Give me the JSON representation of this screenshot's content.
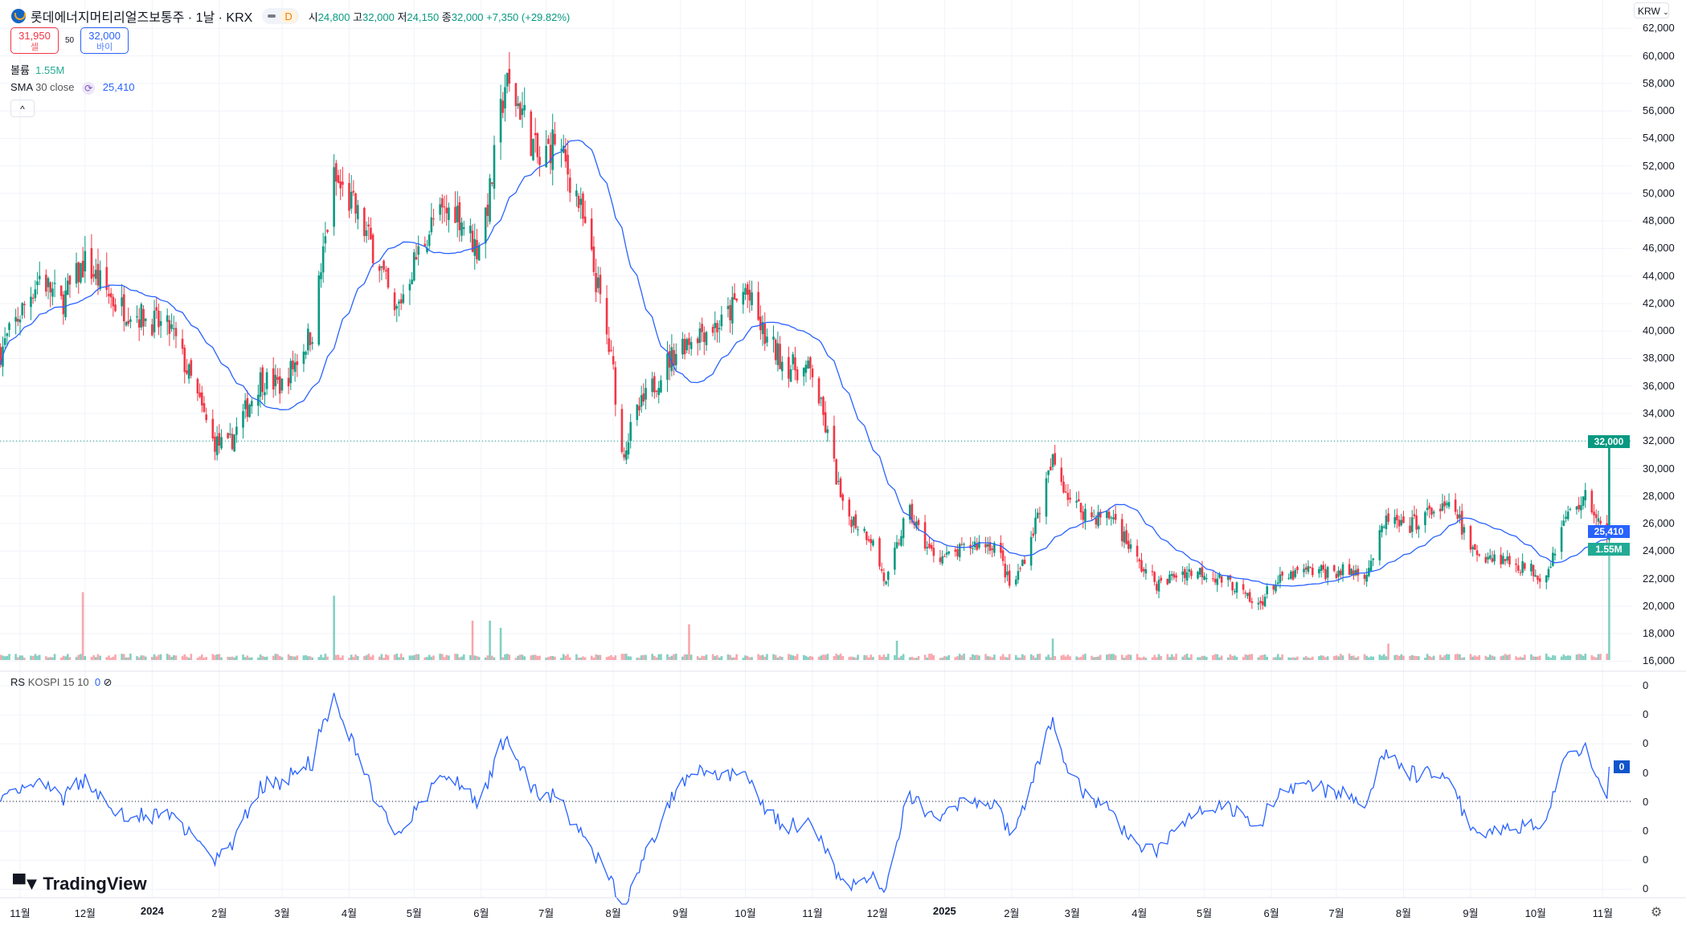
{
  "header": {
    "symbol_title": "롯데에너지머티리얼즈보통주 · 1날 · KRX",
    "interval_badge": "D",
    "open_label": "시",
    "open": "24,800",
    "high_label": "고",
    "high": "32,000",
    "low_label": "저",
    "low": "24,150",
    "close_label": "종",
    "close": "32,000",
    "change": "+7,350 (+29.82%)"
  },
  "trade": {
    "sell_price": "31,950",
    "sell_label": "셀",
    "spread": "50",
    "buy_price": "32,000",
    "buy_label": "바이"
  },
  "legends": {
    "volume_label": "볼륨",
    "volume_value": "1.55M",
    "sma_label": "SMA",
    "sma_params": "30 close",
    "sma_value": "25,410",
    "rs_label": "RS",
    "rs_params": "KOSPI 15 10",
    "rs_value": "0"
  },
  "currency": "KRW",
  "price_axis": [
    "62,000",
    "60,000",
    "58,000",
    "56,000",
    "54,000",
    "52,000",
    "50,000",
    "48,000",
    "46,000",
    "44,000",
    "42,000",
    "40,000",
    "38,000",
    "36,000",
    "34,000",
    "32,000",
    "30,000",
    "28,000",
    "26,000",
    "24,000",
    "22,000",
    "20,000",
    "18,000",
    "16,000"
  ],
  "price_tags": {
    "last": "32,000",
    "sma": "25,410",
    "volume": "1.55M"
  },
  "rs_axis": [
    "0",
    "0",
    "0",
    "0",
    "0",
    "0",
    "0",
    "0"
  ],
  "rs_tag": "0",
  "time_axis": [
    {
      "label": "11월",
      "date": "2023-11-01"
    },
    {
      "label": "12월",
      "date": "2023-12-01"
    },
    {
      "label": "2024",
      "date": "2024-01-01",
      "bold": true
    },
    {
      "label": "2월",
      "date": "2024-02-01"
    },
    {
      "label": "3월",
      "date": "2024-03-01"
    },
    {
      "label": "4월",
      "date": "2024-04-01"
    },
    {
      "label": "5월",
      "date": "2024-05-01"
    },
    {
      "label": "6월",
      "date": "2024-06-01"
    },
    {
      "label": "7월",
      "date": "2024-07-01"
    },
    {
      "label": "8월",
      "date": "2024-08-01"
    },
    {
      "label": "9월",
      "date": "2024-09-01"
    },
    {
      "label": "10월",
      "date": "2024-10-01"
    },
    {
      "label": "11월",
      "date": "2024-11-01"
    },
    {
      "label": "12월",
      "date": "2024-12-01"
    },
    {
      "label": "2025",
      "date": "2025-01-01",
      "bold": true
    },
    {
      "label": "2월",
      "date": "2025-02-01"
    },
    {
      "label": "3월",
      "date": "2025-03-01"
    },
    {
      "label": "4월",
      "date": "2025-04-01"
    },
    {
      "label": "5월",
      "date": "2025-05-01"
    },
    {
      "label": "6월",
      "date": "2025-06-01"
    },
    {
      "label": "7월",
      "date": "2025-07-01"
    },
    {
      "label": "8월",
      "date": "2025-08-01"
    },
    {
      "label": "9월",
      "date": "2025-09-01"
    },
    {
      "label": "10월",
      "date": "2025-10-01"
    },
    {
      "label": "11월",
      "date": "2025-11-01"
    }
  ],
  "branding": "TradingView",
  "colors": {
    "up": "#089981",
    "down": "#f23645",
    "sma": "#2962ff",
    "rs": "#2962ff",
    "grid": "#f0f3fa"
  },
  "chart_data": {
    "type": "candlestick",
    "ylim": [
      16000,
      62000
    ],
    "sma_period": 30,
    "approx_close_path": [
      [
        "2023-10-23",
        38500
      ],
      [
        "2023-11-10",
        44000
      ],
      [
        "2023-11-20",
        42000
      ],
      [
        "2023-12-01",
        45000
      ],
      [
        "2023-12-15",
        42000
      ],
      [
        "2023-12-28",
        41000
      ],
      [
        "2024-01-10",
        40000
      ],
      [
        "2024-01-20",
        36000
      ],
      [
        "2024-01-29",
        32000
      ],
      [
        "2024-02-05",
        31500
      ],
      [
        "2024-02-20",
        36500
      ],
      [
        "2024-03-01",
        36000
      ],
      [
        "2024-03-15",
        40000
      ],
      [
        "2024-03-25",
        51000
      ],
      [
        "2024-04-03",
        49000
      ],
      [
        "2024-04-15",
        45000
      ],
      [
        "2024-04-22",
        41000
      ],
      [
        "2024-05-01",
        45000
      ],
      [
        "2024-05-10",
        48000
      ],
      [
        "2024-05-20",
        49000
      ],
      [
        "2024-05-30",
        46000
      ],
      [
        "2024-06-05",
        50000
      ],
      [
        "2024-06-12",
        58000
      ],
      [
        "2024-06-20",
        56000
      ],
      [
        "2024-06-28",
        52000
      ],
      [
        "2024-07-05",
        54000
      ],
      [
        "2024-07-15",
        50000
      ],
      [
        "2024-07-25",
        43000
      ],
      [
        "2024-08-01",
        37000
      ],
      [
        "2024-08-05",
        31000
      ],
      [
        "2024-08-12",
        34000
      ],
      [
        "2024-08-25",
        37500
      ],
      [
        "2024-09-01",
        39000
      ],
      [
        "2024-09-10",
        40000
      ],
      [
        "2024-09-20",
        40500
      ],
      [
        "2024-10-01",
        43000
      ],
      [
        "2024-10-10",
        39500
      ],
      [
        "2024-10-20",
        37500
      ],
      [
        "2024-11-01",
        37000
      ],
      [
        "2024-11-10",
        31000
      ],
      [
        "2024-11-15",
        27000
      ],
      [
        "2024-11-28",
        25000
      ],
      [
        "2024-12-05",
        21500
      ],
      [
        "2024-12-15",
        27000
      ],
      [
        "2024-12-25",
        24000
      ],
      [
        "2025-01-02",
        23500
      ],
      [
        "2025-01-15",
        24500
      ],
      [
        "2025-01-25",
        24500
      ],
      [
        "2025-02-01",
        21000
      ],
      [
        "2025-02-10",
        25000
      ],
      [
        "2025-02-20",
        30500
      ],
      [
        "2025-03-01",
        27500
      ],
      [
        "2025-03-10",
        26500
      ],
      [
        "2025-03-20",
        26500
      ],
      [
        "2025-04-01",
        23000
      ],
      [
        "2025-04-10",
        21500
      ],
      [
        "2025-04-20",
        22500
      ],
      [
        "2025-05-01",
        22500
      ],
      [
        "2025-05-15",
        21500
      ],
      [
        "2025-05-25",
        19800
      ],
      [
        "2025-06-01",
        21500
      ],
      [
        "2025-06-15",
        22500
      ],
      [
        "2025-07-01",
        22500
      ],
      [
        "2025-07-15",
        22500
      ],
      [
        "2025-07-25",
        26500
      ],
      [
        "2025-08-01",
        25500
      ],
      [
        "2025-08-15",
        27000
      ],
      [
        "2025-08-25",
        27000
      ],
      [
        "2025-09-01",
        24000
      ],
      [
        "2025-09-15",
        23500
      ],
      [
        "2025-10-01",
        22500
      ],
      [
        "2025-10-05",
        22000
      ],
      [
        "2025-10-15",
        26500
      ],
      [
        "2025-10-25",
        28000
      ],
      [
        "2025-11-03",
        24650
      ]
    ],
    "last_bar": {
      "date": "2025-11-04",
      "open": 24800,
      "high": 32000,
      "low": 24150,
      "close": 32000,
      "volume_m": 1.55
    },
    "volume_spikes_m": [
      [
        "2023-11-30",
        0.95
      ],
      [
        "2024-03-25",
        0.9
      ],
      [
        "2024-05-28",
        0.55
      ],
      [
        "2024-06-05",
        0.55
      ],
      [
        "2024-06-10",
        0.45
      ],
      [
        "2024-09-05",
        0.5
      ],
      [
        "2025-02-20",
        0.3
      ],
      [
        "2024-12-10",
        0.27
      ],
      [
        "2025-07-25",
        0.23
      ]
    ]
  }
}
